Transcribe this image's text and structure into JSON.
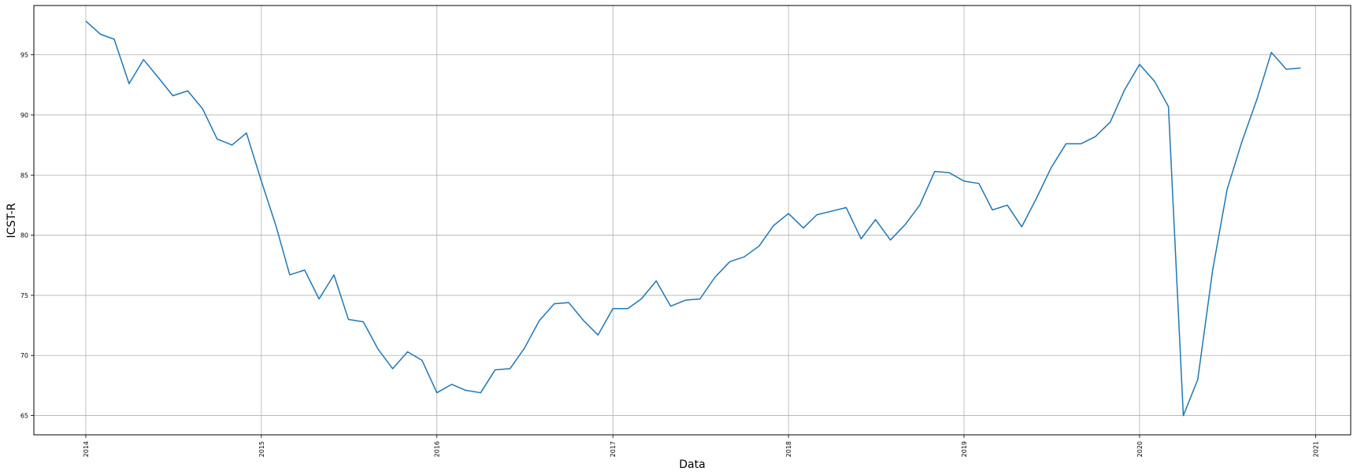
{
  "chart_data": {
    "type": "line",
    "xlabel": "Data",
    "ylabel": "ICST-R",
    "title": "",
    "x_ticks": [
      "2014",
      "2015",
      "2016",
      "2017",
      "2018",
      "2019",
      "2020",
      "2021"
    ],
    "y_ticks": [
      65,
      70,
      75,
      80,
      85,
      90,
      95
    ],
    "xlim": [
      "2013-09-15",
      "2021-03-15"
    ],
    "ylim": [
      63.4,
      99.1
    ],
    "grid": true,
    "line_color": "#1f77b4",
    "series": [
      {
        "x": [
          "2014-01",
          "2014-02",
          "2014-03",
          "2014-04",
          "2014-05",
          "2014-06",
          "2014-07",
          "2014-08",
          "2014-09",
          "2014-10",
          "2014-11",
          "2014-12",
          "2015-01",
          "2015-02",
          "2015-03",
          "2015-04",
          "2015-05",
          "2015-06",
          "2015-07",
          "2015-08",
          "2015-09",
          "2015-10",
          "2015-11",
          "2015-12",
          "2016-01",
          "2016-02",
          "2016-03",
          "2016-04",
          "2016-05",
          "2016-06",
          "2016-07",
          "2016-08",
          "2016-09",
          "2016-10",
          "2016-11",
          "2016-12",
          "2017-01",
          "2017-02",
          "2017-03",
          "2017-04",
          "2017-05",
          "2017-06",
          "2017-07",
          "2017-08",
          "2017-09",
          "2017-10",
          "2017-11",
          "2017-12",
          "2018-01",
          "2018-02",
          "2018-03",
          "2018-04",
          "2018-05",
          "2018-06",
          "2018-07",
          "2018-08",
          "2018-09",
          "2018-10",
          "2018-11",
          "2018-12",
          "2019-01",
          "2019-02",
          "2019-03",
          "2019-04",
          "2019-05",
          "2019-06",
          "2019-07",
          "2019-08",
          "2019-09",
          "2019-10",
          "2019-11",
          "2019-12",
          "2020-01",
          "2020-02",
          "2020-03",
          "2020-04",
          "2020-05",
          "2020-06",
          "2020-07",
          "2020-08",
          "2020-09",
          "2020-10",
          "2020-11",
          "2020-12"
        ],
        "y": [
          97.8,
          96.7,
          96.3,
          92.6,
          94.6,
          93.1,
          91.6,
          92.0,
          90.5,
          88.0,
          87.5,
          88.5,
          84.5,
          80.7,
          76.7,
          77.1,
          74.7,
          76.7,
          73.0,
          72.8,
          70.5,
          68.9,
          70.3,
          69.6,
          66.9,
          67.6,
          67.1,
          66.9,
          68.8,
          68.9,
          70.6,
          72.9,
          74.3,
          74.4,
          72.9,
          71.7,
          73.9,
          73.9,
          74.7,
          76.2,
          74.1,
          74.6,
          74.7,
          76.5,
          77.8,
          78.2,
          79.1,
          80.8,
          81.8,
          80.6,
          81.7,
          82.0,
          82.3,
          79.7,
          81.3,
          79.6,
          80.9,
          82.5,
          85.3,
          85.2,
          84.5,
          84.3,
          82.1,
          82.5,
          80.7,
          83.1,
          85.6,
          87.6,
          87.6,
          88.2,
          89.4,
          92.1,
          94.2,
          92.8,
          90.7,
          65.0,
          68.0,
          77.1,
          83.8,
          87.8,
          91.3,
          95.2,
          93.8,
          93.9
        ]
      }
    ]
  }
}
